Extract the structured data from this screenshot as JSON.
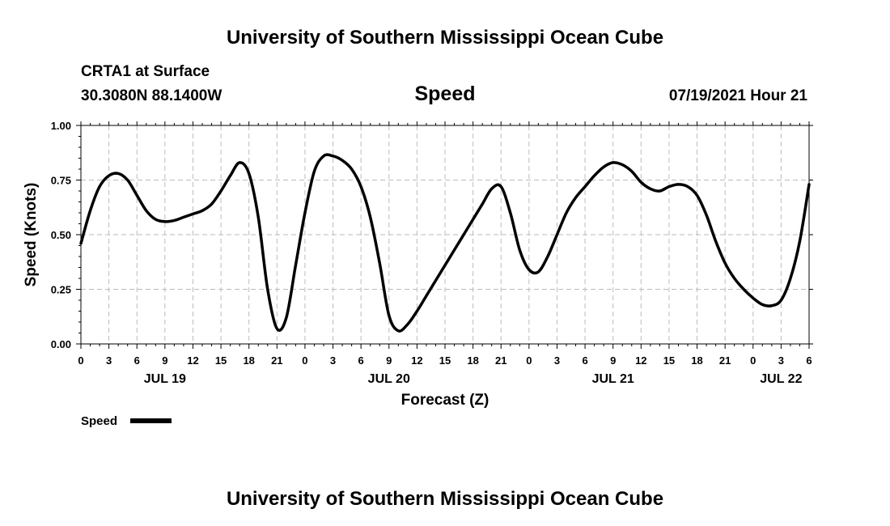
{
  "header": {
    "title_top": "University of Southern Mississippi Ocean Cube",
    "station": "CRTA1 at Surface",
    "coords": "30.3080N  88.1400W",
    "variable": "Speed",
    "timestamp": "07/19/2021 Hour 21"
  },
  "footer": {
    "title_bottom": "University of Southern Mississippi Ocean Cube"
  },
  "legend": {
    "label": "Speed"
  },
  "chart_data": {
    "type": "line",
    "title": "Speed",
    "xlabel": "Forecast (Z)",
    "ylabel": "Speed (Knots)",
    "ylim": [
      0,
      1
    ],
    "xlim": [
      0,
      78
    ],
    "grid": true,
    "y_ticks": [
      0,
      0.25,
      0.5,
      0.75,
      1.0
    ],
    "y_tick_labels": [
      "0.00",
      "0.25",
      "0.50",
      "0.75",
      "1.00"
    ],
    "x_ticks": [
      0,
      3,
      6,
      9,
      12,
      15,
      18,
      21,
      24,
      27,
      30,
      33,
      36,
      39,
      42,
      45,
      48,
      51,
      54,
      57,
      60,
      63,
      66,
      69,
      72,
      75,
      78
    ],
    "x_tick_labels": [
      "0",
      "3",
      "6",
      "9",
      "12",
      "15",
      "18",
      "21",
      "0",
      "3",
      "6",
      "9",
      "12",
      "15",
      "18",
      "21",
      "0",
      "3",
      "6",
      "9",
      "12",
      "15",
      "18",
      "21",
      "0",
      "3",
      "6"
    ],
    "date_labels": [
      {
        "x": 9,
        "label": "JUL 19"
      },
      {
        "x": 33,
        "label": "JUL 20"
      },
      {
        "x": 57,
        "label": "JUL 21"
      },
      {
        "x": 75,
        "label": "JUL 22"
      }
    ],
    "series": [
      {
        "name": "Speed",
        "color": "#000000",
        "x": [
          0,
          1,
          2,
          3,
          4,
          5,
          6,
          7,
          8,
          9,
          10,
          11,
          12,
          13,
          14,
          15,
          16,
          17,
          18,
          19,
          20,
          21,
          22,
          23,
          24,
          25,
          26,
          27,
          28,
          29,
          30,
          31,
          32,
          33,
          34,
          35,
          36,
          37,
          38,
          39,
          40,
          41,
          42,
          43,
          44,
          45,
          46,
          47,
          48,
          49,
          50,
          51,
          52,
          53,
          54,
          55,
          56,
          57,
          58,
          59,
          60,
          61,
          62,
          63,
          64,
          65,
          66,
          67,
          68,
          69,
          70,
          71,
          72,
          73,
          74,
          75,
          76,
          77,
          78
        ],
        "values": [
          0.46,
          0.61,
          0.72,
          0.77,
          0.78,
          0.75,
          0.68,
          0.61,
          0.57,
          0.56,
          0.565,
          0.58,
          0.595,
          0.61,
          0.64,
          0.7,
          0.77,
          0.83,
          0.78,
          0.58,
          0.25,
          0.07,
          0.12,
          0.36,
          0.6,
          0.79,
          0.86,
          0.86,
          0.84,
          0.8,
          0.72,
          0.58,
          0.37,
          0.13,
          0.06,
          0.09,
          0.15,
          0.22,
          0.29,
          0.36,
          0.43,
          0.5,
          0.57,
          0.64,
          0.71,
          0.72,
          0.6,
          0.43,
          0.34,
          0.33,
          0.4,
          0.5,
          0.6,
          0.67,
          0.72,
          0.77,
          0.81,
          0.83,
          0.82,
          0.79,
          0.74,
          0.71,
          0.7,
          0.72,
          0.73,
          0.72,
          0.68,
          0.59,
          0.47,
          0.37,
          0.3,
          0.25,
          0.21,
          0.18,
          0.175,
          0.2,
          0.3,
          0.47,
          0.73
        ]
      }
    ]
  }
}
